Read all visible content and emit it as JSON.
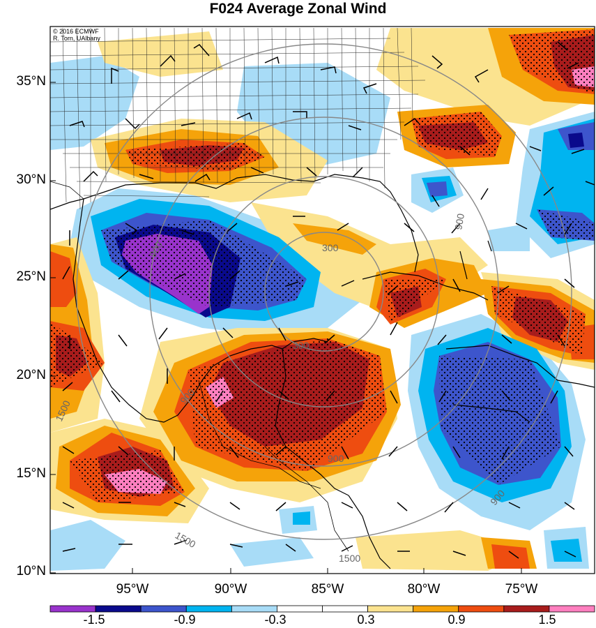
{
  "title": "F024 Average Zonal Wind",
  "credit": {
    "line1": "© 2016 ECMWF",
    "line2": "R. Torn, UAlbany"
  },
  "lat_labels": [
    "35°N",
    "30°N",
    "25°N",
    "20°N",
    "15°N",
    "10°N"
  ],
  "lon_labels": [
    "95°W",
    "90°W",
    "85°W",
    "80°W",
    "75°W"
  ],
  "contour_labels": [
    "900",
    "300",
    "900",
    "300",
    "900",
    "900",
    "1500",
    "1500",
    "1500",
    "900"
  ],
  "colorbar": {
    "labels": [
      "-1.5",
      "-0.9",
      "-0.3",
      "0.3",
      "0.9",
      "1.5"
    ],
    "colors": [
      "#9933cc",
      "#0a0a8c",
      "#3d55cc",
      "#00b4f0",
      "#a8dcf7",
      "#ffffff",
      "#ffffff",
      "#fbe38f",
      "#f5a30a",
      "#ee4d10",
      "#a81c1c",
      "#ff7fbf"
    ]
  },
  "map": {
    "lat_range": [
      10,
      37.5
    ],
    "lon_range": [
      -99.5,
      -71.5
    ],
    "center": [
      -85.5,
      22
    ]
  }
}
